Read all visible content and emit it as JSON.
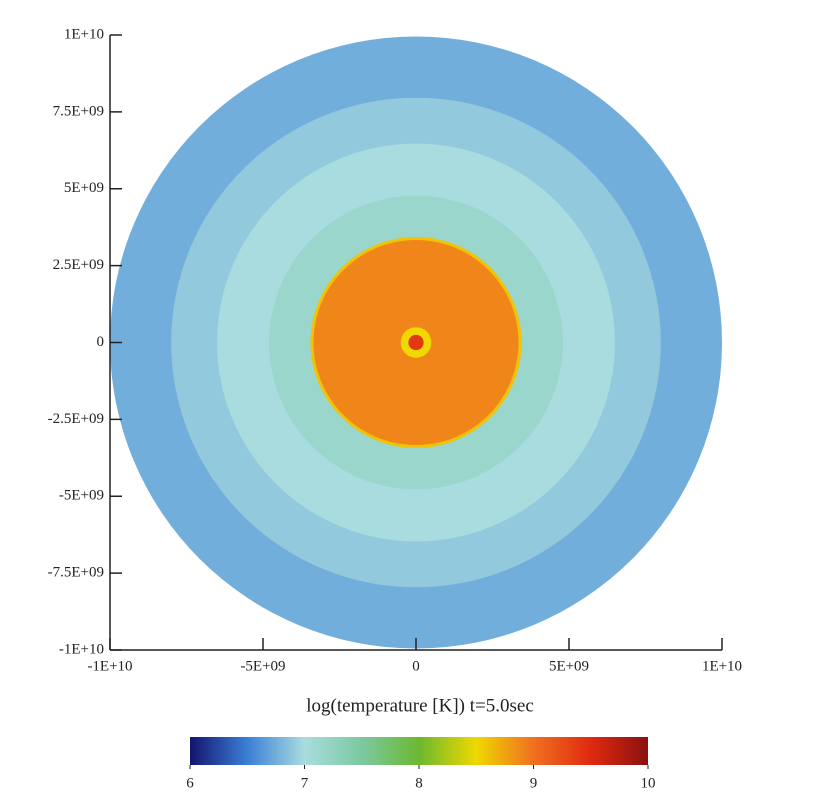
{
  "chart_data": {
    "type": "radial-field",
    "title": "log(temperature [K])  t=5.0sec",
    "xlim": [
      -10000000000,
      10000000000
    ],
    "xticks": [
      {
        "value": -10000000000,
        "label": "-1E+10"
      },
      {
        "value": -5000000000,
        "label": "-5E+09"
      },
      0,
      {
        "value": 5000000000,
        "label": "5E+09"
      },
      {
        "value": 10000000000,
        "label": "1E+10"
      }
    ],
    "ylim": [
      -10000000000,
      10000000000
    ],
    "yticks": [
      {
        "value": -10000000000,
        "label": "-1E+10"
      },
      {
        "value": -7500000000,
        "label": "-7.5E+09"
      },
      {
        "value": -5000000000,
        "label": "-5E+09"
      },
      {
        "value": -2500000000,
        "label": "-2.5E+09"
      },
      0,
      {
        "value": 2500000000,
        "label": "2.5E+09"
      },
      {
        "value": 5000000000,
        "label": "5E+09"
      },
      {
        "value": 7500000000,
        "label": "7.5E+09"
      },
      {
        "value": 10000000000,
        "label": "1E+10"
      }
    ],
    "rings": {
      "radius": [
        10000000000,
        8000000000,
        6500000000,
        4800000000,
        3450000000,
        3350000000,
        500000000,
        250000000
      ],
      "values": [
        6.75,
        6.9,
        7.0,
        7.15,
        8.6,
        8.9,
        8.5,
        9.4
      ]
    },
    "clim": [
      6,
      10
    ],
    "cticks": [
      6,
      7,
      8,
      9,
      10
    ],
    "colormap": [
      "#14146e",
      "#3b7fd6",
      "#a9dcdf",
      "#7cc9a0",
      "#6cb830",
      "#f0d800",
      "#f07020",
      "#e02a10",
      "#8b1010"
    ]
  }
}
